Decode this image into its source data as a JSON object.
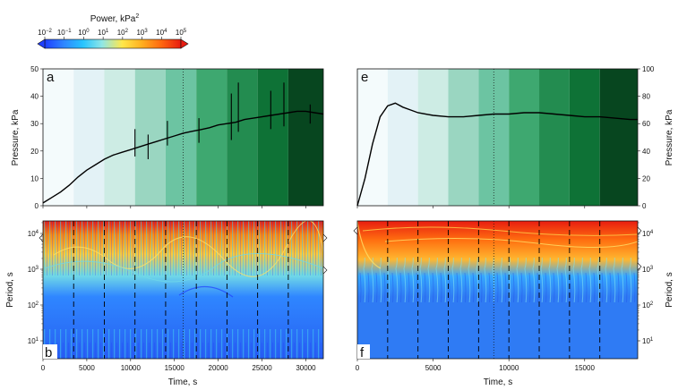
{
  "colorbar": {
    "title": "Power, kPa",
    "title_superscript": "2",
    "tick_labels": [
      "10−2",
      "10−1",
      "100",
      "101",
      "102",
      "103",
      "104",
      "105"
    ],
    "colors": [
      "#1f3fff",
      "#2f86ff",
      "#27c4ff",
      "#8fe6e6",
      "#ffe74a",
      "#ffb020",
      "#ff6a10",
      "#e81c10"
    ]
  },
  "shading_greens": [
    "#f4fbfc",
    "#e3f2f6",
    "#cdece4",
    "#9ad6c1",
    "#6cc4a2",
    "#3ea870",
    "#238c50",
    "#0e7236",
    "#07461f"
  ],
  "chart_data": [
    {
      "panel": "a",
      "type": "line",
      "ylabel": "Pressure, kPa",
      "xlim": [
        0,
        32000
      ],
      "ylim": [
        0,
        50
      ],
      "x_ticks": [
        0,
        5000,
        10000,
        15000,
        20000,
        25000,
        30000
      ],
      "y_ticks": [
        0,
        10,
        20,
        30,
        40,
        50
      ],
      "shading_bounds": [
        0,
        3500,
        7000,
        10500,
        14000,
        17500,
        21000,
        24500,
        28000,
        32000
      ],
      "dotted_x": 16000,
      "series": [
        {
          "x": [
            0,
            1000,
            2000,
            3000,
            4000,
            5000,
            6000,
            7000,
            8000,
            9000,
            10000,
            11000,
            12000,
            13000,
            14000,
            15000,
            16000,
            17000,
            18000,
            19000,
            20000,
            21000,
            22000,
            23000,
            24000,
            25000,
            26000,
            27000,
            28000,
            29000,
            30000,
            31000,
            32000
          ],
          "values": [
            1,
            3,
            5,
            7.5,
            10.5,
            13,
            15,
            17,
            18.5,
            19.5,
            20.5,
            21.5,
            22.5,
            23.5,
            24.5,
            25.5,
            26.5,
            27.2,
            27.8,
            28.5,
            29.5,
            30,
            30.5,
            31.5,
            32,
            32.5,
            33,
            33.5,
            34,
            34.5,
            34.5,
            34,
            33.5
          ]
        }
      ],
      "spikes": [
        {
          "x": 10500,
          "low": 18,
          "high": 28
        },
        {
          "x": 12000,
          "low": 17,
          "high": 26
        },
        {
          "x": 14200,
          "low": 22,
          "high": 31
        },
        {
          "x": 17800,
          "low": 23,
          "high": 32
        },
        {
          "x": 21500,
          "low": 24,
          "high": 41
        },
        {
          "x": 22300,
          "low": 27,
          "high": 45
        },
        {
          "x": 26000,
          "low": 28,
          "high": 42
        },
        {
          "x": 27500,
          "low": 29,
          "high": 45
        },
        {
          "x": 30500,
          "low": 30,
          "high": 37
        }
      ]
    },
    {
      "panel": "b",
      "type": "heatmap",
      "xlabel": "Time, s",
      "ylabel": "Period, s",
      "xlim": [
        0,
        32000
      ],
      "x_ticks": [
        0,
        5000,
        10000,
        15000,
        20000,
        25000,
        30000
      ],
      "y_log_ticks": [
        "101",
        "102",
        "103",
        "104"
      ],
      "dashed_x": [
        3500,
        7000,
        10500,
        14000,
        17500,
        21000,
        24500,
        28000
      ],
      "dotted_x": 16000
    },
    {
      "panel": "e",
      "type": "line",
      "ylabel": "Pressure, kPa",
      "xlim": [
        0,
        18500
      ],
      "ylim": [
        0,
        100
      ],
      "x_ticks": [
        0,
        5000,
        10000,
        15000
      ],
      "y_ticks": [
        0,
        20,
        40,
        60,
        80,
        100
      ],
      "shading_bounds": [
        0,
        2000,
        4000,
        6000,
        8000,
        10000,
        12000,
        14000,
        16000,
        18500
      ],
      "dotted_x": 9000,
      "series": [
        {
          "x": [
            0,
            500,
            1000,
            1500,
            2000,
            2500,
            3000,
            3500,
            4000,
            5000,
            6000,
            7000,
            8000,
            9000,
            10000,
            11000,
            12000,
            13000,
            14000,
            15000,
            16000,
            17000,
            18000,
            18500
          ],
          "values": [
            0,
            20,
            45,
            65,
            73,
            75,
            72,
            70,
            68,
            66,
            65,
            65,
            66,
            67,
            67,
            68,
            68,
            67,
            66,
            65,
            65,
            64,
            63,
            63
          ]
        }
      ]
    },
    {
      "panel": "f",
      "type": "heatmap",
      "xlabel": "Time, s",
      "ylabel": "Period, s",
      "xlim": [
        0,
        18500
      ],
      "x_ticks": [
        0,
        5000,
        10000,
        15000
      ],
      "y_log_ticks": [
        "101",
        "102",
        "103",
        "104"
      ],
      "dashed_x": [
        2000,
        4000,
        6000,
        8000,
        10000,
        12000,
        14000,
        16000
      ],
      "dotted_x": 9000
    }
  ]
}
